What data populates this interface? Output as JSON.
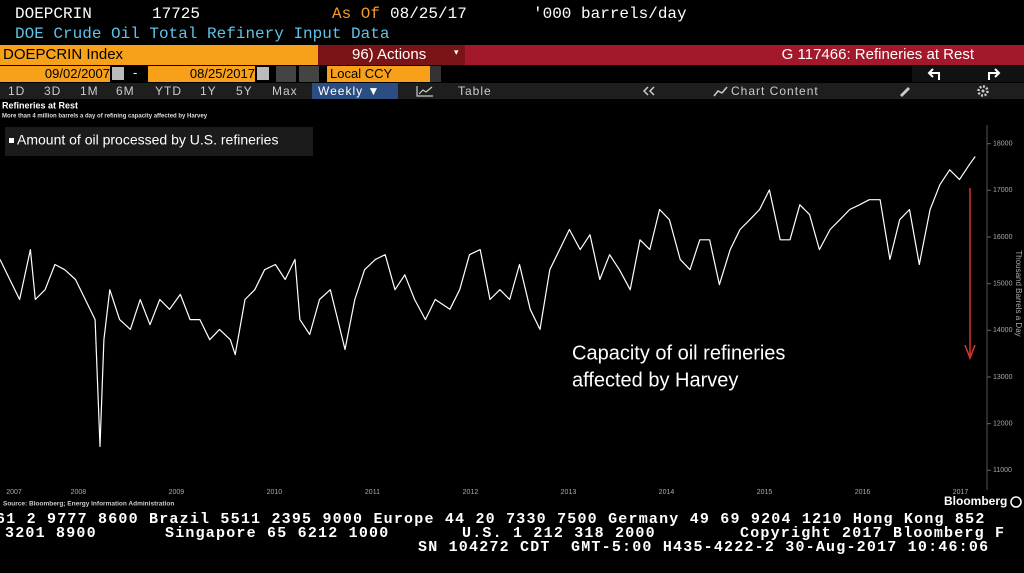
{
  "header": {
    "ticker": "DOEPCRIN",
    "last": 17725,
    "as_of_label": "As Of",
    "as_of_date": "08/25/17",
    "units": "'000 barrels/day",
    "description": "DOE Crude Oil Total Refinery Input Data"
  },
  "toolbar": {
    "security": "DOEPCRIN Index",
    "actions": "96) Actions",
    "chart_id": "G 117466: Refineries at Rest",
    "start_date": "09/02/2007",
    "date_separator": "-",
    "end_date": "08/25/2017",
    "currency": "Local CCY",
    "periods": [
      "1D",
      "3D",
      "1M",
      "6M",
      "YTD",
      "1Y",
      "5Y",
      "Max"
    ],
    "frequency": "Weekly ▼",
    "table": "Table",
    "chart_content": "Chart Content"
  },
  "chart_data": {
    "type": "line",
    "title": "Refineries at Rest",
    "subtitle": "More than 4 million barrels a day of refining capacity affected by Harvey",
    "y_label": "Thousand Barrels a Day",
    "annotation": [
      "Capacity of oil refineries",
      "affected by Harvey"
    ],
    "source": "Source: Bloomberg; Energy Information Administration",
    "brand": "Bloomberg",
    "legend": "upper left",
    "x": [
      2007.7,
      2007.8,
      2007.9,
      2008.01,
      2008.06,
      2008.16,
      2008.26,
      2008.36,
      2008.47,
      2008.57,
      2008.67,
      2008.72,
      2008.76,
      2008.82,
      2008.92,
      2009.03,
      2009.13,
      2009.23,
      2009.33,
      2009.43,
      2009.54,
      2009.64,
      2009.74,
      2009.84,
      2009.94,
      2010.05,
      2010.1,
      2010.2,
      2010.3,
      2010.4,
      2010.51,
      2010.61,
      2010.71,
      2010.76,
      2010.86,
      2010.96,
      2011.07,
      2011.17,
      2011.22,
      2011.32,
      2011.42,
      2011.53,
      2011.63,
      2011.73,
      2011.83,
      2011.93,
      2012.04,
      2012.14,
      2012.29,
      2012.39,
      2012.49,
      2012.6,
      2012.7,
      2012.8,
      2012.9,
      2013.0,
      2013.11,
      2013.21,
      2013.31,
      2013.41,
      2013.51,
      2013.62,
      2013.72,
      2013.82,
      2013.92,
      2014.02,
      2014.13,
      2014.23,
      2014.33,
      2014.43,
      2014.53,
      2014.64,
      2014.74,
      2014.84,
      2014.94,
      2015.04,
      2015.15,
      2015.25,
      2015.35,
      2015.45,
      2015.55,
      2015.66,
      2015.76,
      2015.86,
      2015.96,
      2016.06,
      2016.17,
      2016.27,
      2016.37,
      2016.47,
      2016.57,
      2016.68,
      2016.78,
      2016.88,
      2016.98,
      2017.08,
      2017.19,
      2017.29,
      2017.39,
      2017.49,
      2017.59,
      2017.65
    ],
    "series": [
      {
        "name": "Amount of oil processed by U.S. refineries",
        "color": "#ffffff",
        "values": [
          15520,
          15090,
          14660,
          15730,
          14660,
          14870,
          15410,
          15300,
          15090,
          14660,
          14230,
          11510,
          13800,
          14870,
          14230,
          14020,
          14660,
          14120,
          14660,
          14450,
          14770,
          14230,
          14230,
          13800,
          14020,
          13800,
          13480,
          14660,
          14870,
          15300,
          15410,
          15090,
          15520,
          14230,
          13910,
          14660,
          14870,
          14020,
          13590,
          14660,
          15300,
          15520,
          15620,
          14870,
          15190,
          14660,
          14230,
          14660,
          14450,
          14870,
          15620,
          15730,
          14660,
          14870,
          14660,
          15410,
          14450,
          14020,
          15300,
          15730,
          16160,
          15730,
          16050,
          15090,
          15620,
          15300,
          14870,
          15940,
          15730,
          16590,
          16370,
          15520,
          15300,
          15940,
          15940,
          14980,
          15730,
          16160,
          16370,
          16590,
          17010,
          15940,
          15940,
          16690,
          16480,
          15730,
          16160,
          16370,
          16590,
          16690,
          16800,
          16800,
          15520,
          16370,
          16590,
          15410,
          16590,
          17120,
          17440,
          17230,
          17550,
          17725
        ]
      }
    ],
    "xlim": [
      2007.7,
      2017.75
    ],
    "xticks": [
      {
        "value": 2007.5,
        "label": "2007"
      },
      {
        "value": 2008.5,
        "label": "2008"
      },
      {
        "value": 2009.5,
        "label": "2009"
      },
      {
        "value": 2010.5,
        "label": "2010"
      },
      {
        "value": 2011.5,
        "label": "2011"
      },
      {
        "value": 2012.5,
        "label": "2012"
      },
      {
        "value": 2013.5,
        "label": "2013"
      },
      {
        "value": 2014.5,
        "label": "2014"
      },
      {
        "value": 2015.5,
        "label": "2015"
      },
      {
        "value": 2016.5,
        "label": "2016"
      },
      {
        "value": 2017.5,
        "label": "2017"
      }
    ],
    "ylim": [
      10750,
      18400
    ],
    "yticks": [
      11000,
      12000,
      13000,
      14000,
      15000,
      16000,
      17000,
      18000
    ]
  },
  "footer": {
    "line1": "61 2 9777 8600 Brazil 5511 2395 9000 Europe 44 20 7330 7500 Germany 49 69 9204 1210 Hong Kong 852",
    "line2": [
      "3201 8900",
      "Singapore 65 6212 1000",
      "U.S. 1 212 318 2000",
      "Copyright 2017 Bloomberg F"
    ],
    "line3": "SN 104272 CDT  GMT-5:00 H435-4222-2 30-Aug-2017 10:46:06"
  }
}
